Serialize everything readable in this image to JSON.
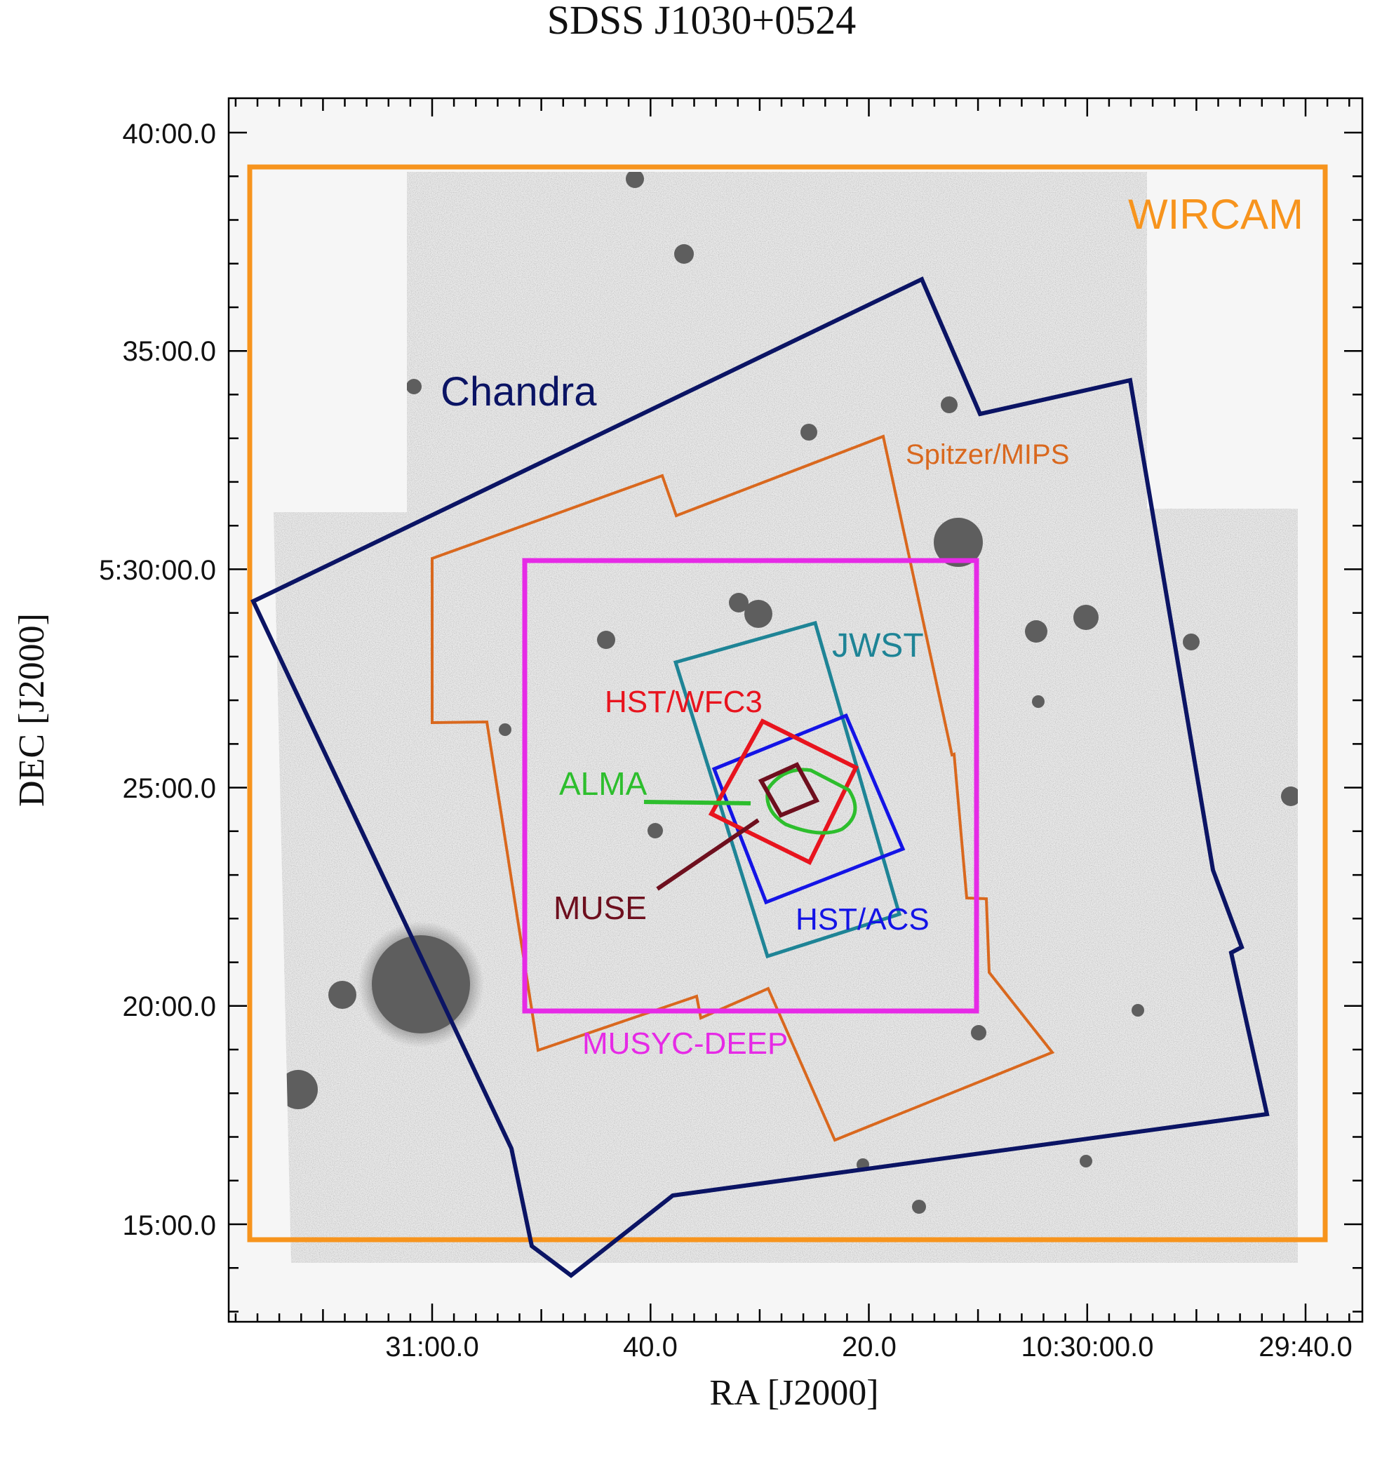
{
  "title": "SDSS J1030+0524",
  "axes": {
    "x_label": "RA [J2000]",
    "y_label": "DEC [J2000]",
    "x_ticks": [
      "31:00.0",
      "40.0",
      "20.0",
      "10:30:00.0",
      "29:40.0"
    ],
    "y_ticks": [
      "40:00.0",
      "35:00.0",
      "5:30:00.0",
      "25:00.0",
      "20:00.0",
      "15:00.0"
    ]
  },
  "footprints": [
    {
      "id": "wircam",
      "label": "WIRCAM",
      "color": "#F7941D"
    },
    {
      "id": "chandra",
      "label": "Chandra",
      "color": "#0B1464"
    },
    {
      "id": "spitzer",
      "label": "Spitzer/MIPS",
      "color": "#D9681E"
    },
    {
      "id": "musyc",
      "label": "MUSYC-DEEP",
      "color": "#E62AE6"
    },
    {
      "id": "jwst",
      "label": "JWST",
      "color": "#1E8496"
    },
    {
      "id": "wfc3",
      "label": "HST/WFC3",
      "color": "#E8141E"
    },
    {
      "id": "acs",
      "label": "HST/ACS",
      "color": "#1414E6"
    },
    {
      "id": "alma",
      "label": "ALMA",
      "color": "#2DBE2D"
    },
    {
      "id": "muse",
      "label": "MUSE",
      "color": "#6E0F1E"
    }
  ]
}
